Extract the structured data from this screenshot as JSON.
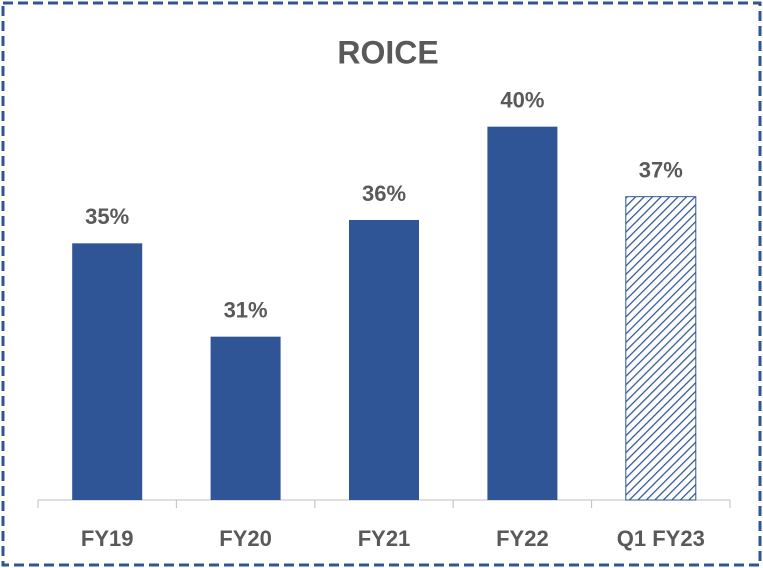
{
  "chart_data": {
    "type": "bar",
    "title": "ROICE",
    "categories": [
      "FY19",
      "FY20",
      "FY21",
      "FY22",
      "Q1 FY23"
    ],
    "values": [
      35,
      31,
      36,
      40,
      37
    ],
    "value_labels": [
      "35%",
      "31%",
      "36%",
      "40%",
      "37%"
    ],
    "color": "#2f5597",
    "hatch": [
      false,
      false,
      false,
      false,
      true
    ],
    "ylim": [
      24,
      42
    ]
  }
}
